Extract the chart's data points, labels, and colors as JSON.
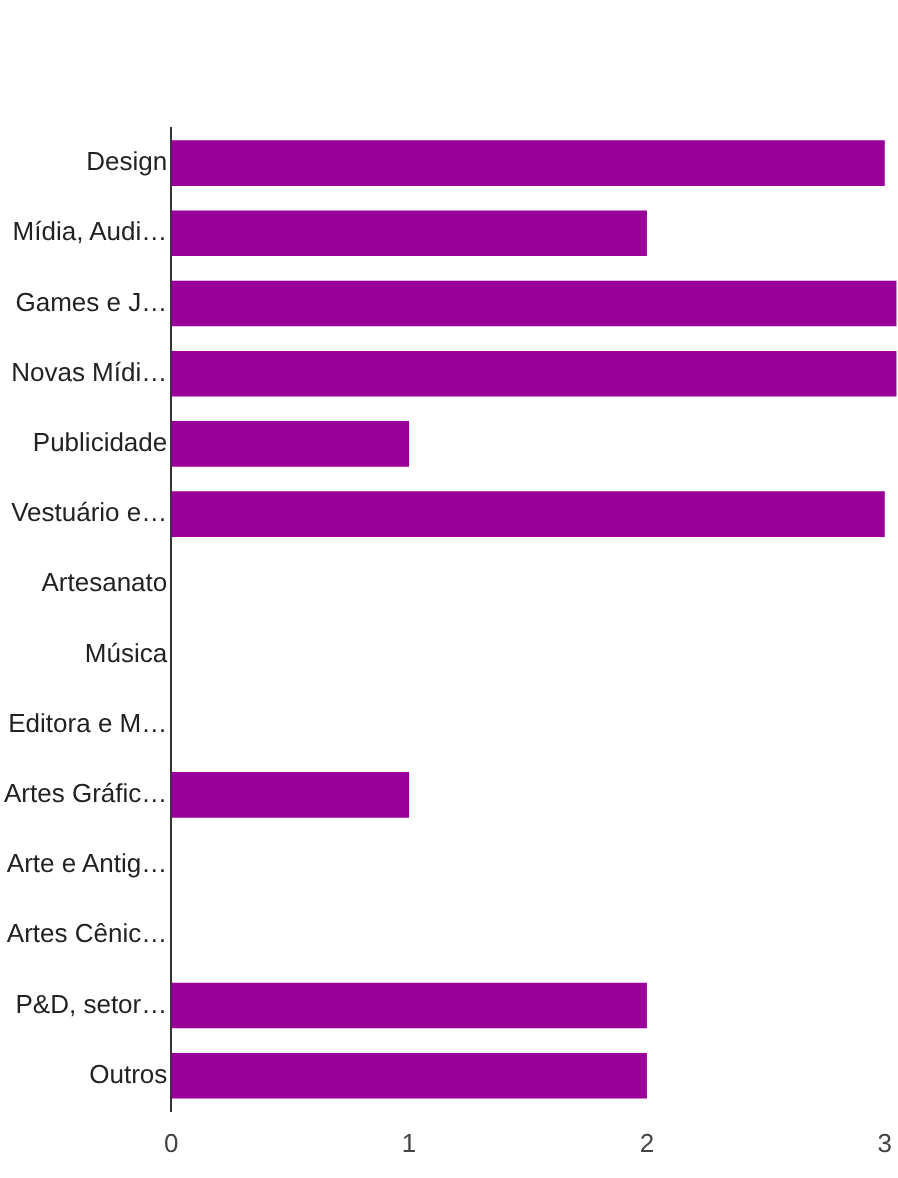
{
  "chart_data": {
    "type": "bar",
    "orientation": "horizontal",
    "categories": [
      "Design",
      "Mídia, Audi…",
      "Games e J…",
      "Novas Mídi…",
      "Publicidade",
      "Vestuário e…",
      "Artesanato",
      "Música",
      "Editora e M…",
      "Artes Gráfic…",
      "Arte e Antig…",
      "Artes Cênic…",
      "P&D, setor…",
      "Outros"
    ],
    "values": [
      3,
      2,
      3.05,
      3.05,
      1,
      3,
      0,
      0,
      0,
      1,
      0,
      0,
      2,
      2
    ],
    "color": "#990099",
    "xlim": [
      0,
      3.05
    ],
    "xticks": [
      0,
      1,
      2,
      3
    ],
    "grid": false,
    "legend": false
  }
}
